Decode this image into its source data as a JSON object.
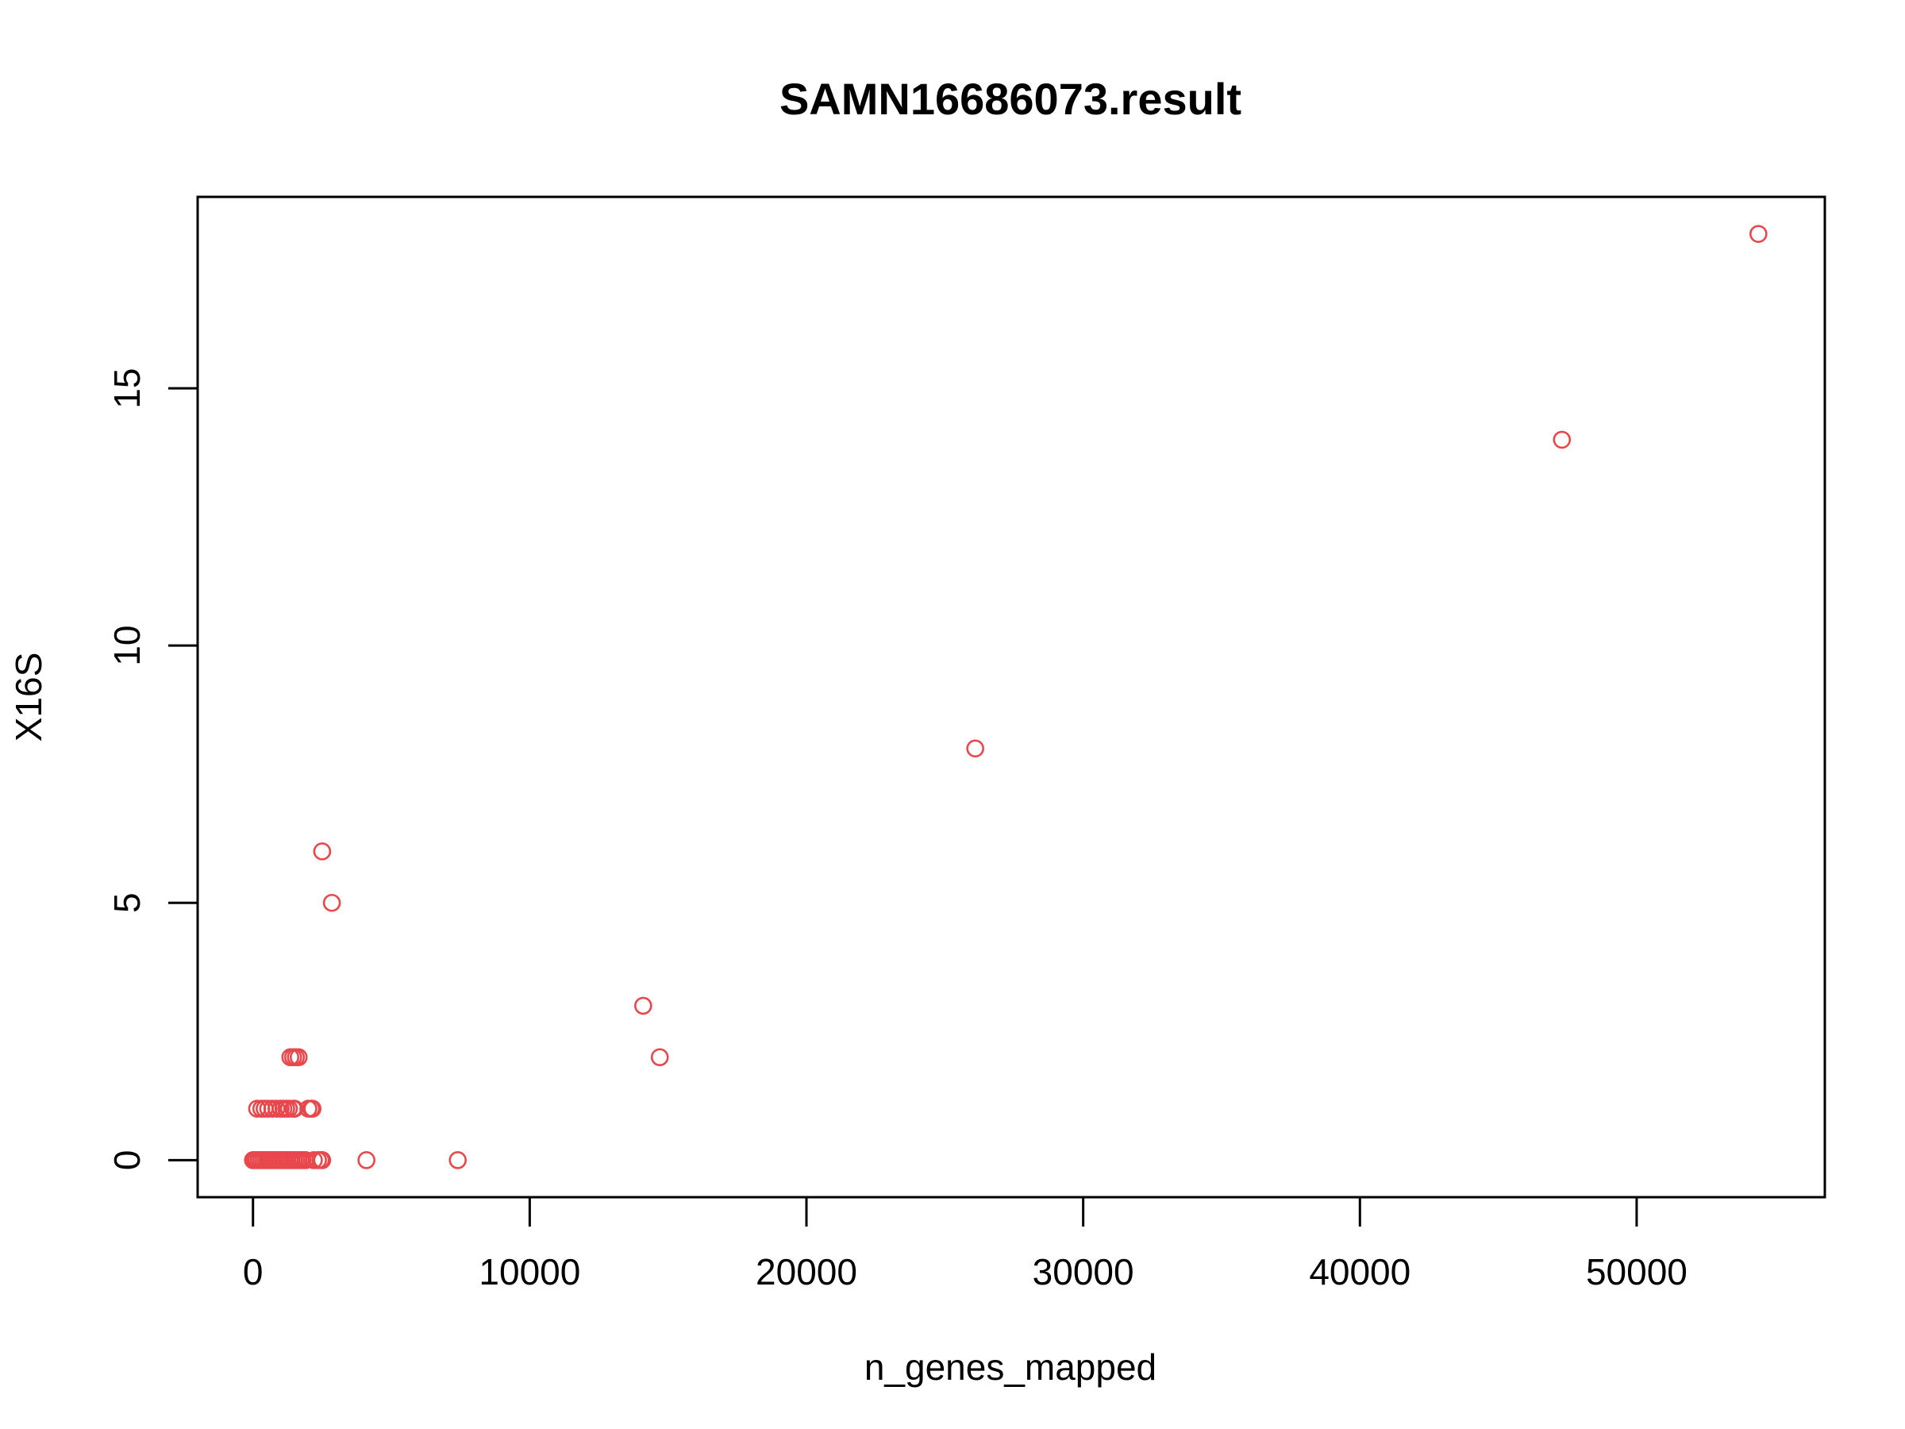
{
  "chart_data": {
    "type": "scatter",
    "title": "SAMN16686073.result",
    "xlabel": "n_genes_mapped",
    "ylabel": "X16S",
    "xlim": [
      -2000,
      56800
    ],
    "ylim": [
      -0.72,
      18.72
    ],
    "x_ticks": [
      0,
      10000,
      20000,
      30000,
      40000,
      50000
    ],
    "x_tick_labels": [
      "0",
      "10000",
      "20000",
      "30000",
      "40000",
      "50000"
    ],
    "y_ticks": [
      0,
      5,
      10,
      15
    ],
    "y_tick_labels": [
      "0",
      "5",
      "10",
      "15"
    ],
    "grid": false,
    "point_style": "open-circle",
    "point_color": "#e8474c",
    "points": [
      {
        "x": 0,
        "y": 0
      },
      {
        "x": 60,
        "y": 0
      },
      {
        "x": 120,
        "y": 0
      },
      {
        "x": 200,
        "y": 0
      },
      {
        "x": 280,
        "y": 0
      },
      {
        "x": 360,
        "y": 0
      },
      {
        "x": 440,
        "y": 0
      },
      {
        "x": 520,
        "y": 0
      },
      {
        "x": 600,
        "y": 0
      },
      {
        "x": 680,
        "y": 0
      },
      {
        "x": 760,
        "y": 0
      },
      {
        "x": 840,
        "y": 0
      },
      {
        "x": 920,
        "y": 0
      },
      {
        "x": 1000,
        "y": 0
      },
      {
        "x": 1080,
        "y": 0
      },
      {
        "x": 1160,
        "y": 0
      },
      {
        "x": 1240,
        "y": 0
      },
      {
        "x": 1320,
        "y": 0
      },
      {
        "x": 1400,
        "y": 0
      },
      {
        "x": 1480,
        "y": 0
      },
      {
        "x": 1560,
        "y": 0
      },
      {
        "x": 1640,
        "y": 0
      },
      {
        "x": 1720,
        "y": 0
      },
      {
        "x": 1800,
        "y": 0
      },
      {
        "x": 1900,
        "y": 0
      },
      {
        "x": 2200,
        "y": 0
      },
      {
        "x": 2350,
        "y": 0
      },
      {
        "x": 2450,
        "y": 0
      },
      {
        "x": 2500,
        "y": 0
      },
      {
        "x": 4100,
        "y": 0
      },
      {
        "x": 7400,
        "y": 0
      },
      {
        "x": 150,
        "y": 1
      },
      {
        "x": 300,
        "y": 1
      },
      {
        "x": 420,
        "y": 1
      },
      {
        "x": 550,
        "y": 1
      },
      {
        "x": 700,
        "y": 1
      },
      {
        "x": 850,
        "y": 1
      },
      {
        "x": 1000,
        "y": 1
      },
      {
        "x": 1100,
        "y": 1
      },
      {
        "x": 1200,
        "y": 1
      },
      {
        "x": 1300,
        "y": 1
      },
      {
        "x": 1450,
        "y": 1
      },
      {
        "x": 1500,
        "y": 1
      },
      {
        "x": 2000,
        "y": 1
      },
      {
        "x": 2100,
        "y": 1
      },
      {
        "x": 2150,
        "y": 1
      },
      {
        "x": 1350,
        "y": 2
      },
      {
        "x": 1450,
        "y": 2
      },
      {
        "x": 1550,
        "y": 2
      },
      {
        "x": 1650,
        "y": 2
      },
      {
        "x": 14700,
        "y": 2
      },
      {
        "x": 14100,
        "y": 3
      },
      {
        "x": 2850,
        "y": 5
      },
      {
        "x": 2500,
        "y": 6
      },
      {
        "x": 26100,
        "y": 8
      },
      {
        "x": 47300,
        "y": 14
      },
      {
        "x": 54400,
        "y": 18
      }
    ]
  }
}
